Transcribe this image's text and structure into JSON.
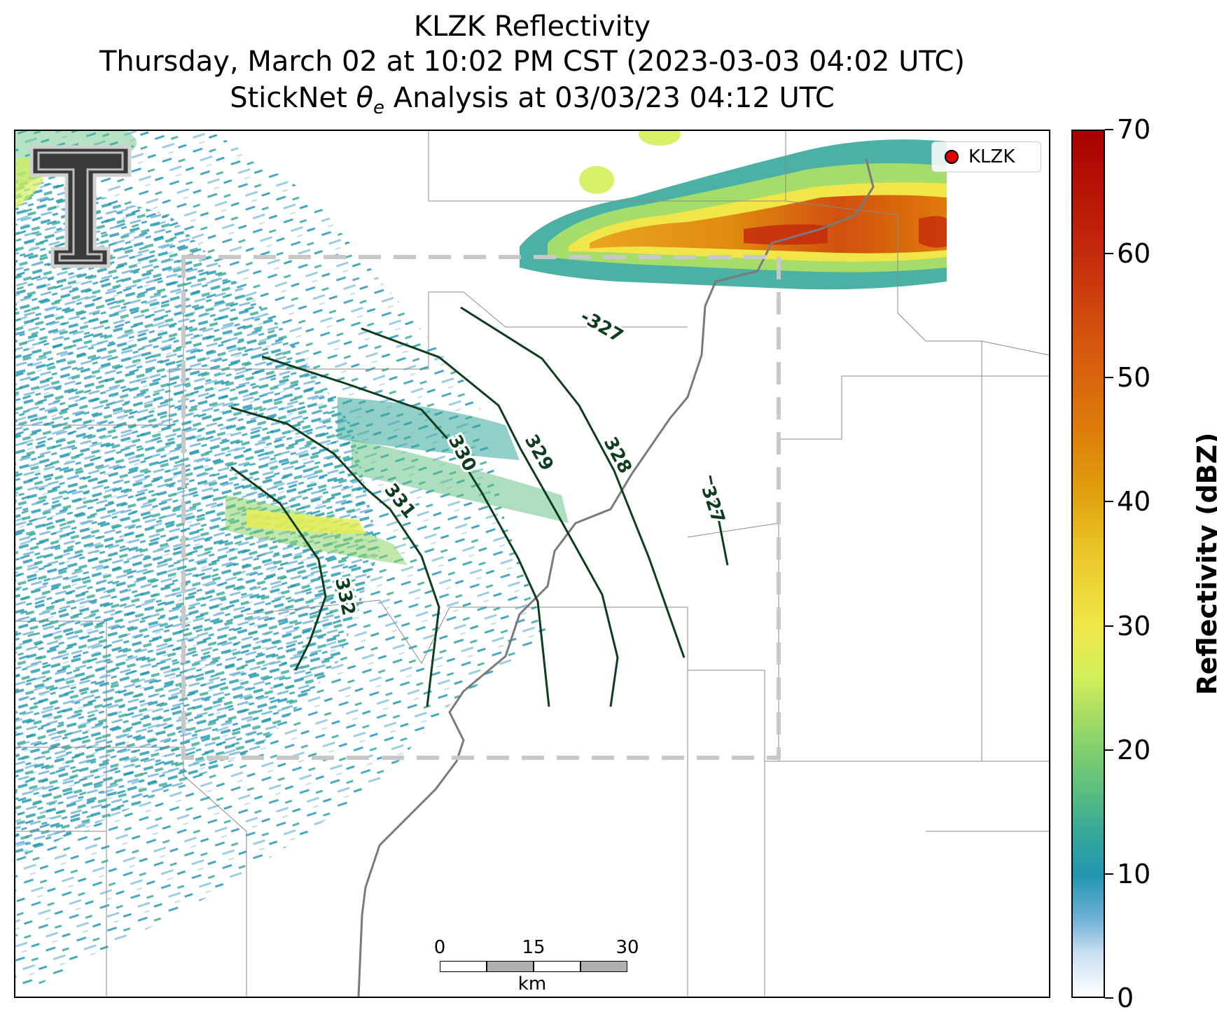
{
  "title": {
    "line1": "KLZK Reflectivity",
    "line2": "Thursday, March 02 at 10:02 PM CST (2023-03-03 04:02 UTC)",
    "line3_prefix": "StickNet ",
    "line3_symbol": "θ",
    "line3_sub": "e",
    "line3_suffix": " Analysis at 03/03/23 04:12 UTC"
  },
  "legend": {
    "label": "KLZK",
    "marker_color": "#e00000"
  },
  "colorbar": {
    "label": "Reflectivity (dBZ)",
    "ticks": [
      "0",
      "10",
      "20",
      "30",
      "40",
      "50",
      "60",
      "70"
    ],
    "range": [
      0,
      70
    ]
  },
  "scalebar": {
    "ticks": [
      "0",
      "15",
      "30"
    ],
    "unit": "km"
  },
  "contours": {
    "color": "#0d3d1e",
    "labels": [
      "-327",
      "327",
      "328",
      "329",
      "330",
      "331",
      "332"
    ]
  },
  "logo": {
    "icon": "texas-tech-double-t-logo"
  }
}
